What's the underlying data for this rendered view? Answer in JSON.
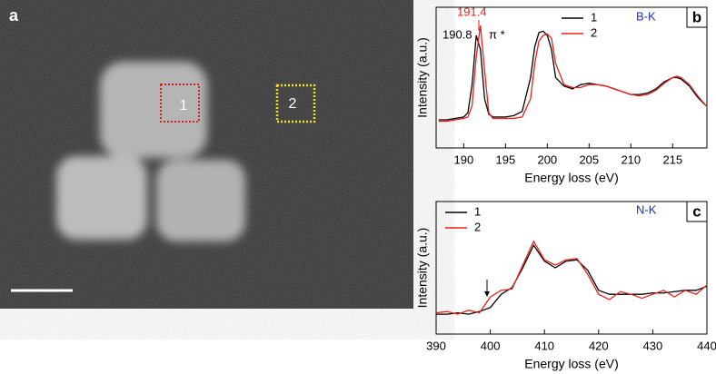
{
  "image_panel": {
    "label": "a",
    "regions": [
      "1",
      "2"
    ]
  },
  "chart_data": [
    {
      "type": "line",
      "panel": "b",
      "x_label": "Energy loss (eV)",
      "y_label": "Intensity (a.u.)",
      "annotations": [
        "191.4",
        "190.8",
        "π *",
        "B-K"
      ],
      "xlim": [
        186.7,
        219.1
      ],
      "xticks": [
        190,
        195,
        200,
        205,
        210,
        215
      ],
      "ylim": [
        0,
        1
      ],
      "legend": "top-right",
      "x": [
        187,
        188,
        189,
        190,
        190.5,
        191,
        191.5,
        192,
        192.5,
        193,
        193.5,
        194,
        195,
        196,
        197,
        198,
        198.5,
        199,
        199.5,
        200,
        200.5,
        201,
        202,
        203,
        204,
        205,
        206,
        207,
        208,
        209,
        210,
        211,
        212,
        213,
        214,
        215,
        215.5,
        216,
        217,
        218,
        219
      ],
      "series": [
        {
          "name": "1",
          "color": "#000000",
          "values": [
            0.2,
            0.2,
            0.21,
            0.22,
            0.25,
            0.45,
            0.8,
            0.7,
            0.35,
            0.24,
            0.22,
            0.22,
            0.22,
            0.23,
            0.26,
            0.5,
            0.72,
            0.82,
            0.83,
            0.8,
            0.7,
            0.5,
            0.44,
            0.42,
            0.45,
            0.46,
            0.45,
            0.44,
            0.42,
            0.4,
            0.38,
            0.38,
            0.39,
            0.42,
            0.47,
            0.5,
            0.5,
            0.49,
            0.44,
            0.36,
            0.3
          ]
        },
        {
          "name": "2",
          "color": "#e8201e",
          "values": [
            0.19,
            0.19,
            0.2,
            0.21,
            0.22,
            0.3,
            0.65,
            0.87,
            0.55,
            0.25,
            0.21,
            0.21,
            0.21,
            0.21,
            0.22,
            0.35,
            0.6,
            0.76,
            0.8,
            0.81,
            0.78,
            0.6,
            0.45,
            0.43,
            0.43,
            0.45,
            0.45,
            0.44,
            0.42,
            0.4,
            0.38,
            0.37,
            0.38,
            0.41,
            0.46,
            0.5,
            0.51,
            0.5,
            0.45,
            0.37,
            0.3
          ]
        }
      ]
    },
    {
      "type": "line",
      "panel": "c",
      "x_label": "Energy loss (eV)",
      "y_label": "Intensity (a.u.)",
      "annotations": [
        "N-K"
      ],
      "xlim": [
        390,
        440
      ],
      "xticks": [
        390,
        400,
        410,
        420,
        430,
        440
      ],
      "ylim": [
        0,
        1
      ],
      "legend": "top-left",
      "x": [
        390,
        392,
        394,
        396,
        398,
        400,
        402,
        404,
        406,
        408,
        410,
        412,
        414,
        416,
        418,
        420,
        422,
        424,
        426,
        428,
        430,
        432,
        434,
        436,
        438,
        440
      ],
      "series": [
        {
          "name": "1",
          "color": "#000000",
          "values": [
            0.15,
            0.15,
            0.16,
            0.15,
            0.17,
            0.2,
            0.3,
            0.35,
            0.5,
            0.67,
            0.55,
            0.5,
            0.55,
            0.56,
            0.48,
            0.33,
            0.3,
            0.3,
            0.3,
            0.3,
            0.31,
            0.31,
            0.32,
            0.33,
            0.33,
            0.36
          ]
        },
        {
          "name": "2",
          "color": "#e8201e",
          "values": [
            0.16,
            0.17,
            0.15,
            0.18,
            0.16,
            0.28,
            0.33,
            0.34,
            0.52,
            0.7,
            0.56,
            0.52,
            0.56,
            0.57,
            0.45,
            0.3,
            0.26,
            0.32,
            0.3,
            0.27,
            0.3,
            0.33,
            0.28,
            0.33,
            0.3,
            0.37
          ]
        }
      ]
    }
  ]
}
